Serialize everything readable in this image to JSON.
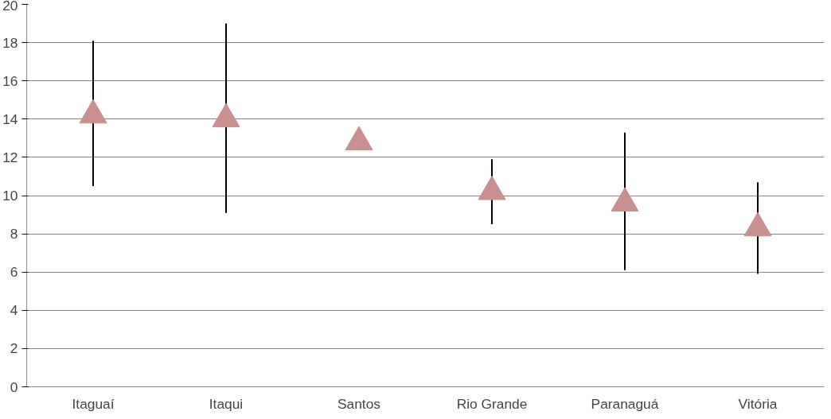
{
  "chart_data": {
    "type": "scatter",
    "categories": [
      "Itaguaí",
      "Itaqui",
      "Santos",
      "Rio Grande",
      "Paranaguá",
      "Vitória"
    ],
    "series": [
      {
        "color": "#c98f8f",
        "values": [
          14.2,
          14.0,
          12.8,
          10.2,
          9.6,
          8.3
        ],
        "errors": [
          [
            10.5,
            18.1
          ],
          [
            9.1,
            19.0
          ],
          null,
          [
            8.5,
            11.9
          ],
          [
            6.1,
            13.3
          ],
          [
            5.9,
            10.7
          ]
        ]
      }
    ],
    "marker": "triangle",
    "ylim": [
      0,
      20
    ],
    "yticks": [
      0,
      2,
      4,
      6,
      8,
      10,
      12,
      14,
      16,
      18,
      20
    ],
    "grid": "y"
  }
}
